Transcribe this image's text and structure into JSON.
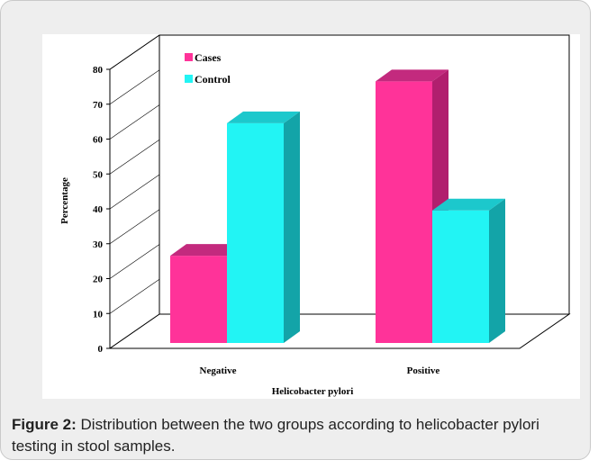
{
  "caption": {
    "label": "Figure 2:",
    "text": " Distribution between the two groups according to helicobacter pylori testing in stool samples."
  },
  "colors": {
    "cases_front": "#ff3399",
    "cases_side": "#b11f6e",
    "cases_top": "#c32a7e",
    "control_front": "#22f4f4",
    "control_side": "#13a4a8",
    "control_top": "#1cc8cc"
  },
  "chart_data": {
    "type": "bar",
    "title": "",
    "xlabel": "Helicobacter pylori",
    "ylabel": "Percentage",
    "categories": [
      "Negative",
      "Positive"
    ],
    "series": [
      {
        "name": "Cases",
        "values": [
          25,
          75
        ]
      },
      {
        "name": "Control",
        "values": [
          63,
          38
        ]
      }
    ],
    "ylim": [
      0,
      80
    ],
    "yticks": [
      0,
      10,
      20,
      30,
      40,
      50,
      60,
      70,
      80
    ],
    "legend": "top-left",
    "style": "3d-clustered"
  }
}
